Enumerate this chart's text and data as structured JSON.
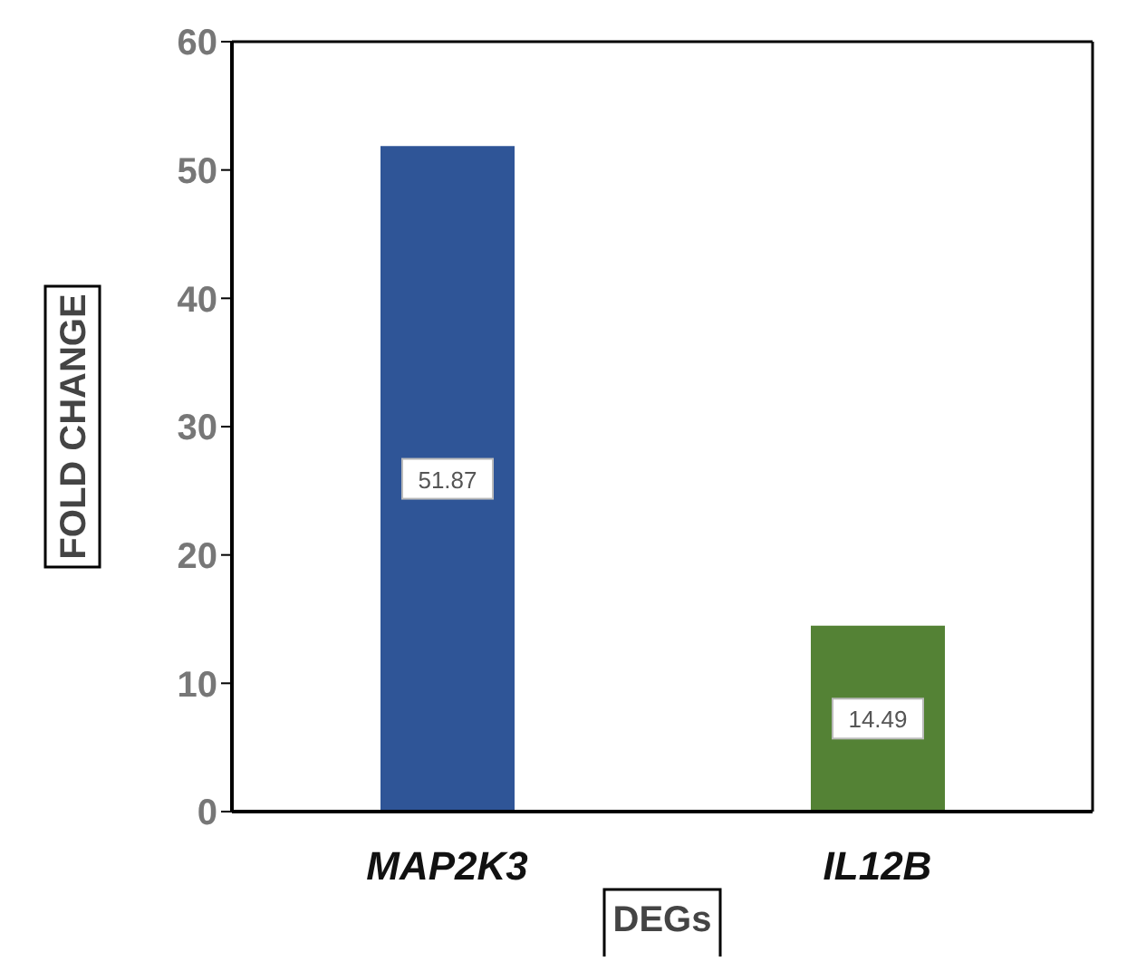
{
  "chart_data": {
    "type": "bar",
    "xlabel": "DEGs",
    "ylabel": "FOLD CHANGE",
    "categories": [
      "MAP2K3",
      "IL12B"
    ],
    "values": [
      51.87,
      14.49
    ],
    "colors": [
      "#2f5597",
      "#548235"
    ],
    "ylim": [
      0,
      60
    ],
    "yticks": [
      0,
      10,
      20,
      30,
      40,
      50,
      60
    ],
    "data_labels": true
  }
}
